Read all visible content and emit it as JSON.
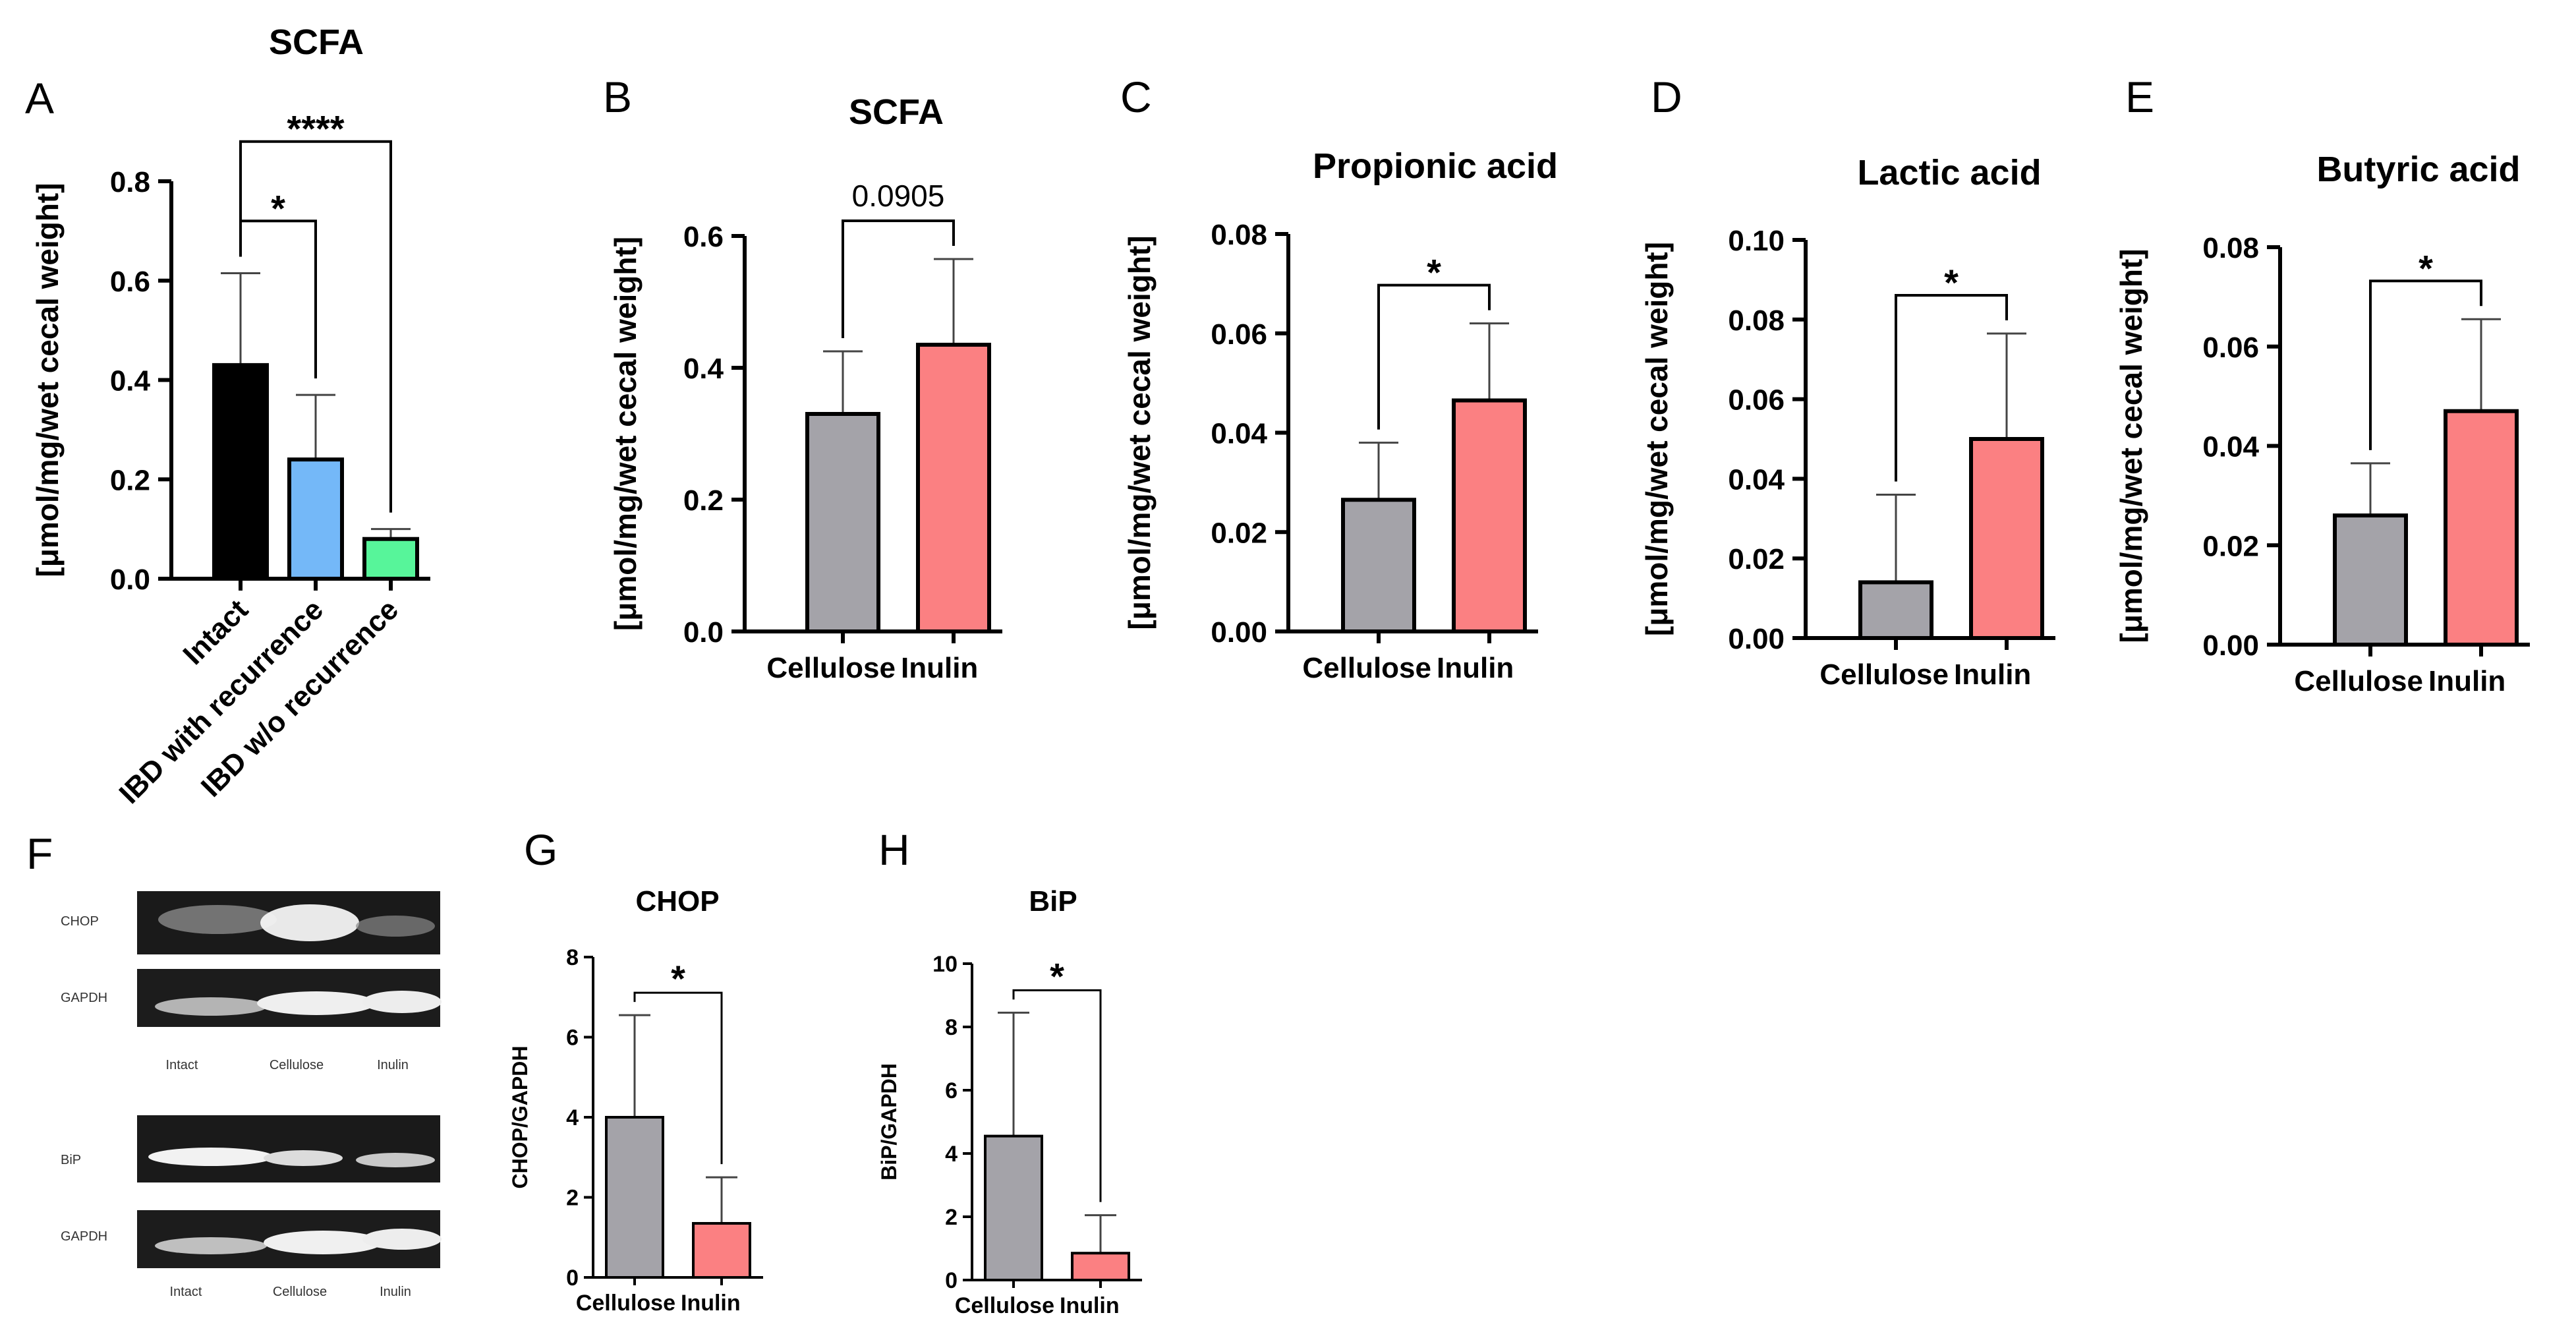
{
  "colors": {
    "gray": "#a4a3a9",
    "pink": "#fb8082",
    "black": "#000000",
    "blue": "#74b8f8",
    "green": "#57f59a"
  },
  "chart_data": [
    {
      "id": "A",
      "type": "bar",
      "title": "SCFA",
      "letter": "A",
      "ylabel": "[μmol/mg/wet cecal weight]",
      "ylim": [
        0,
        0.8
      ],
      "yticks": [
        "0.0",
        "0.2",
        "0.4",
        "0.6",
        "0.8"
      ],
      "categories": [
        "Intact",
        "IBD with recurrence",
        "IBD w/o recurrence"
      ],
      "values": [
        0.43,
        0.24,
        0.08
      ],
      "errors": [
        0.185,
        0.13,
        0.02
      ],
      "colors": [
        "#000000",
        "#74b8f8",
        "#57f59a"
      ],
      "rotated_labels": true,
      "sig": [
        {
          "from": 0,
          "to": 1,
          "label": "*"
        },
        {
          "from": 0,
          "to": 2,
          "label": "****"
        }
      ]
    },
    {
      "id": "B",
      "type": "bar",
      "title": "SCFA",
      "letter": "B",
      "ylabel": "[μmol/mg/wet cecal weight]",
      "ylim": [
        0,
        0.6
      ],
      "yticks": [
        "0.0",
        "0.2",
        "0.4",
        "0.6"
      ],
      "categories": [
        "Cellulose",
        "Inulin"
      ],
      "values": [
        0.33,
        0.435
      ],
      "errors": [
        0.095,
        0.13
      ],
      "colors": [
        "#a4a3a9",
        "#fb8082"
      ],
      "sig": [
        {
          "from": 0,
          "to": 1,
          "label": "0.0905"
        }
      ]
    },
    {
      "id": "C",
      "type": "bar",
      "title": "Propionic acid",
      "letter": "C",
      "ylabel": "[μmol/mg/wet cecal weight]",
      "ylim": [
        0,
        0.08
      ],
      "yticks": [
        "0.00",
        "0.02",
        "0.04",
        "0.06",
        "0.08"
      ],
      "categories": [
        "Cellulose",
        "Inulin"
      ],
      "values": [
        0.0265,
        0.0465
      ],
      "errors": [
        0.0115,
        0.0155
      ],
      "colors": [
        "#a4a3a9",
        "#fb8082"
      ],
      "sig": [
        {
          "from": 0,
          "to": 1,
          "label": "*"
        }
      ]
    },
    {
      "id": "D",
      "type": "bar",
      "title": "Lactic acid",
      "letter": "D",
      "ylabel": "[μmol/mg/wet cecal weight]",
      "ylim": [
        0,
        0.1
      ],
      "yticks": [
        "0.00",
        "0.02",
        "0.04",
        "0.06",
        "0.08",
        "0.10"
      ],
      "categories": [
        "Cellulose",
        "Inulin"
      ],
      "values": [
        0.014,
        0.05
      ],
      "errors": [
        0.022,
        0.0265
      ],
      "colors": [
        "#a4a3a9",
        "#fb8082"
      ],
      "sig": [
        {
          "from": 0,
          "to": 1,
          "label": "*"
        }
      ]
    },
    {
      "id": "E",
      "type": "bar",
      "title": "Butyric acid",
      "letter": "E",
      "ylabel": "[μmol/mg/wet cecal weight]",
      "ylim": [
        0,
        0.08
      ],
      "yticks": [
        "0.00",
        "0.02",
        "0.04",
        "0.06",
        "0.08"
      ],
      "categories": [
        "Cellulose",
        "Inulin"
      ],
      "values": [
        0.026,
        0.047
      ],
      "errors": [
        0.0105,
        0.0185
      ],
      "colors": [
        "#a4a3a9",
        "#fb8082"
      ],
      "sig": [
        {
          "from": 0,
          "to": 1,
          "label": "*"
        }
      ]
    },
    {
      "id": "G",
      "type": "bar",
      "title": "CHOP",
      "letter": "G",
      "ylabel": "CHOP/GAPDH",
      "ylim": [
        0,
        8
      ],
      "yticks": [
        "0",
        "2",
        "4",
        "6",
        "8"
      ],
      "categories": [
        "Cellulose",
        "Inulin"
      ],
      "values": [
        4.0,
        1.35
      ],
      "errors": [
        2.55,
        1.15
      ],
      "colors": [
        "#a4a3a9",
        "#fb8082"
      ],
      "sig": [
        {
          "from": 0,
          "to": 1,
          "label": "*"
        }
      ]
    },
    {
      "id": "H",
      "type": "bar",
      "title": "BiP",
      "letter": "H",
      "ylabel": "BiP/GAPDH",
      "ylim": [
        0,
        10
      ],
      "yticks": [
        "0",
        "2",
        "4",
        "6",
        "8",
        "10"
      ],
      "categories": [
        "Cellulose",
        "Inulin"
      ],
      "values": [
        4.55,
        0.85
      ],
      "errors": [
        3.9,
        1.2
      ],
      "colors": [
        "#a4a3a9",
        "#fb8082"
      ],
      "sig": [
        {
          "from": 0,
          "to": 1,
          "label": "*"
        }
      ]
    }
  ],
  "blot": {
    "letter": "F",
    "rows": [
      "CHOP",
      "GAPDH",
      "BiP",
      "GAPDH"
    ],
    "lanes": [
      "Intact",
      "Cellulose",
      "Inulin"
    ]
  }
}
